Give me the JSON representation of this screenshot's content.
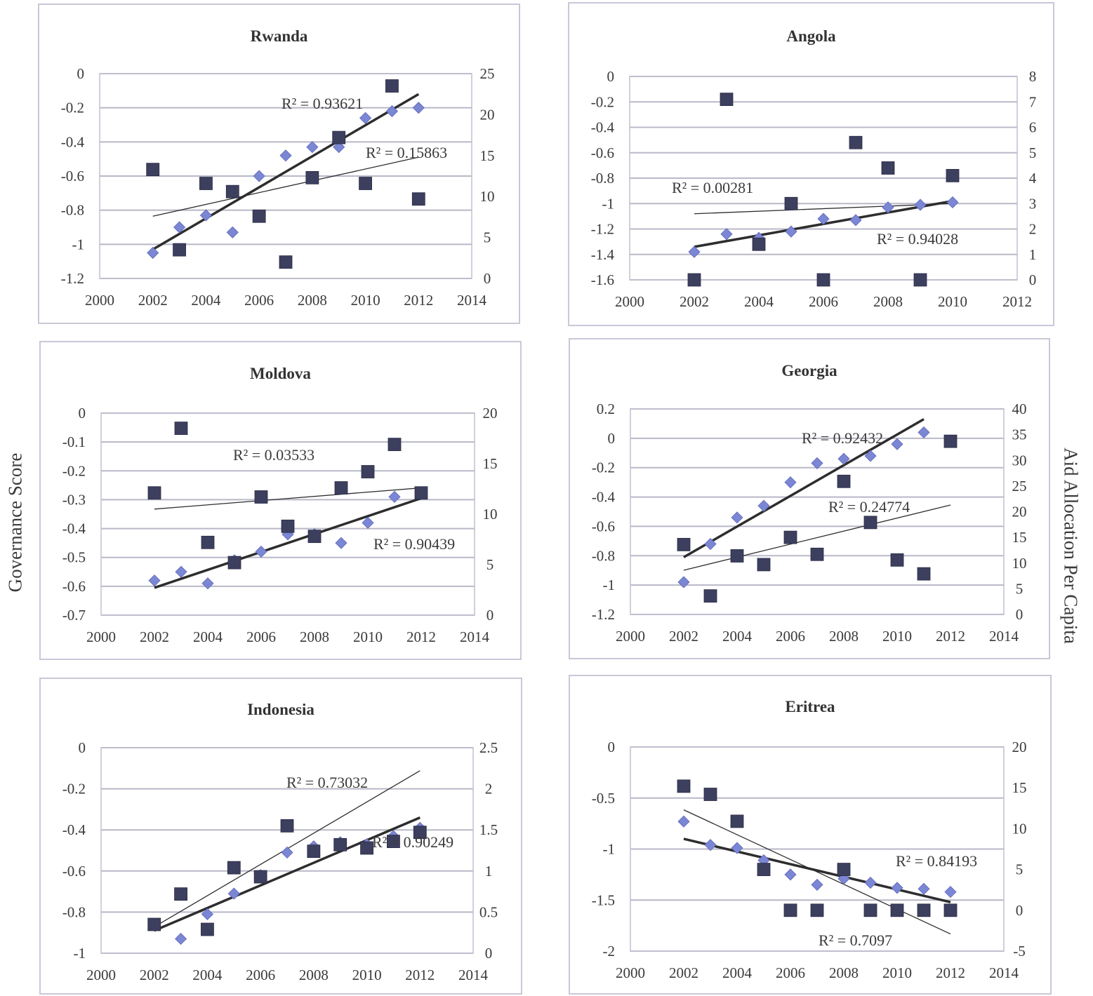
{
  "shared": {
    "left_axis_label": "Governance Score",
    "right_axis_label": "Aid Allocation Per Capita"
  },
  "chart_data": [
    {
      "type": "scatter",
      "title": "Rwanda",
      "x_ticks": [
        "2000",
        "2002",
        "2004",
        "2006",
        "2008",
        "2010",
        "2012",
        "2014"
      ],
      "xlim": [
        2000,
        2014
      ],
      "y_left": {
        "range": [
          -1.2,
          0
        ],
        "ticks": [
          "0",
          "-0.2",
          "-0.4",
          "-0.6",
          "-0.8",
          "-1",
          "-1.2"
        ]
      },
      "y_right": {
        "range": [
          0,
          25
        ],
        "ticks": [
          "25",
          "20",
          "15",
          "10",
          "5",
          "0"
        ]
      },
      "series": [
        {
          "axis": "left",
          "marker": "diamond",
          "x": [
            2002,
            2003,
            2004,
            2005,
            2006,
            2007,
            2008,
            2009,
            2010,
            2011,
            2012
          ],
          "y": [
            -1.05,
            -0.9,
            -0.83,
            -0.93,
            -0.6,
            -0.48,
            -0.43,
            -0.43,
            -0.26,
            -0.22,
            -0.2
          ]
        },
        {
          "axis": "right",
          "marker": "square",
          "x": [
            2002,
            2003,
            2004,
            2005,
            2006,
            2007,
            2008,
            2009,
            2010,
            2011,
            2012
          ],
          "y": [
            13.3,
            3.5,
            11.6,
            10.6,
            7.6,
            2.0,
            12.3,
            17.2,
            11.6,
            23.5,
            9.7
          ]
        }
      ],
      "trendlines": [
        {
          "axis": "left",
          "style": "thick",
          "x": [
            2002,
            2012
          ],
          "y": [
            -1.03,
            -0.12
          ]
        },
        {
          "axis": "right",
          "style": "thin",
          "x": [
            2002,
            2012
          ],
          "y": [
            7.6,
            14.8
          ]
        }
      ],
      "annotations": [
        "R² = 0.93621",
        "R² = 0.15863"
      ]
    },
    {
      "type": "scatter",
      "title": "Angola",
      "x_ticks": [
        "2000",
        "2002",
        "2004",
        "2006",
        "2008",
        "2010",
        "2012"
      ],
      "xlim": [
        2000,
        2012
      ],
      "y_left": {
        "range": [
          -1.6,
          0
        ],
        "ticks": [
          "0",
          "-0.2",
          "-0.4",
          "-0.6",
          "-0.8",
          "-1",
          "-1.2",
          "-1.4",
          "-1.6"
        ]
      },
      "y_right": {
        "range": [
          0,
          8
        ],
        "ticks": [
          "8",
          "7",
          "6",
          "5",
          "4",
          "3",
          "2",
          "1",
          "0"
        ]
      },
      "series": [
        {
          "axis": "left",
          "marker": "diamond",
          "x": [
            2002,
            2003,
            2004,
            2005,
            2006,
            2007,
            2008,
            2009,
            2010
          ],
          "y": [
            -1.38,
            -1.24,
            -1.27,
            -1.22,
            -1.12,
            -1.13,
            -1.03,
            -1.01,
            -0.99
          ]
        },
        {
          "axis": "right",
          "marker": "square",
          "x": [
            2002,
            2003,
            2004,
            2005,
            2006,
            2007,
            2008,
            2009,
            2010
          ],
          "y": [
            0,
            7.1,
            1.4,
            3.0,
            0,
            5.4,
            4.4,
            0,
            4.1
          ]
        }
      ],
      "trendlines": [
        {
          "axis": "left",
          "style": "thick",
          "x": [
            2002,
            2010
          ],
          "y": [
            -1.34,
            -0.98
          ]
        },
        {
          "axis": "right",
          "style": "thin",
          "x": [
            2002,
            2010
          ],
          "y": [
            2.6,
            3.0
          ]
        }
      ],
      "annotations": [
        "R² = 0.00281",
        "R² = 0.94028"
      ]
    },
    {
      "type": "scatter",
      "title": "Moldova",
      "x_ticks": [
        "2000",
        "2002",
        "2004",
        "2006",
        "2008",
        "2010",
        "2012",
        "2014"
      ],
      "xlim": [
        2000,
        2014
      ],
      "y_left": {
        "range": [
          -0.7,
          0
        ],
        "ticks": [
          "0",
          "-0.1",
          "-0.2",
          "-0.3",
          "-0.4",
          "-0.5",
          "-0.6",
          "-0.7"
        ]
      },
      "y_right": {
        "range": [
          0,
          20
        ],
        "ticks": [
          "20",
          "15",
          "10",
          "5",
          "0"
        ]
      },
      "series": [
        {
          "axis": "left",
          "marker": "diamond",
          "x": [
            2002,
            2003,
            2004,
            2005,
            2006,
            2007,
            2008,
            2009,
            2010,
            2011,
            2012
          ],
          "y": [
            -0.58,
            -0.55,
            -0.59,
            -0.51,
            -0.48,
            -0.42,
            -0.42,
            -0.45,
            -0.38,
            -0.29,
            -0.28
          ]
        },
        {
          "axis": "right",
          "marker": "square",
          "x": [
            2002,
            2003,
            2004,
            2005,
            2006,
            2007,
            2008,
            2009,
            2010,
            2011,
            2012
          ],
          "y": [
            12.1,
            18.5,
            7.2,
            5.2,
            11.7,
            8.8,
            7.8,
            12.6,
            14.2,
            16.9,
            12.1
          ]
        }
      ],
      "trendlines": [
        {
          "axis": "left",
          "style": "thick",
          "x": [
            2002,
            2012
          ],
          "y": [
            -0.605,
            -0.295
          ]
        },
        {
          "axis": "right",
          "style": "thin",
          "x": [
            2002,
            2012
          ],
          "y": [
            10.5,
            12.6
          ]
        }
      ],
      "annotations": [
        "R² = 0.03533",
        "R² = 0.90439"
      ]
    },
    {
      "type": "scatter",
      "title": "Georgia",
      "x_ticks": [
        "2000",
        "2002",
        "2004",
        "2006",
        "2008",
        "2010",
        "2012",
        "2014"
      ],
      "xlim": [
        2000,
        2014
      ],
      "y_left": {
        "range": [
          -1.2,
          0.2
        ],
        "ticks": [
          "0.2",
          "0",
          "-0.2",
          "-0.4",
          "-0.6",
          "-0.8",
          "-1",
          "-1.2"
        ]
      },
      "y_right": {
        "range": [
          0,
          40
        ],
        "ticks": [
          "40",
          "35",
          "30",
          "25",
          "20",
          "15",
          "10",
          "5",
          "0"
        ]
      },
      "series": [
        {
          "axis": "left",
          "marker": "diamond",
          "x": [
            2002,
            2003,
            2004,
            2005,
            2006,
            2007,
            2008,
            2009,
            2010,
            2011
          ],
          "y": [
            -0.98,
            -0.72,
            -0.54,
            -0.46,
            -0.3,
            -0.17,
            -0.14,
            -0.12,
            -0.04,
            0.04
          ]
        },
        {
          "axis": "right",
          "marker": "square",
          "x": [
            2002,
            2003,
            2004,
            2005,
            2006,
            2007,
            2008,
            2009,
            2010,
            2011,
            2012
          ],
          "y": [
            13.6,
            3.6,
            11.4,
            9.7,
            15.0,
            11.7,
            25.9,
            17.9,
            10.6,
            7.9,
            33.7
          ]
        }
      ],
      "trendlines": [
        {
          "axis": "left",
          "style": "thick",
          "x": [
            2002,
            2011
          ],
          "y": [
            -0.81,
            0.13
          ]
        },
        {
          "axis": "right",
          "style": "thin",
          "x": [
            2002,
            2012
          ],
          "y": [
            8.6,
            21.3
          ]
        }
      ],
      "annotations": [
        "R² = 0.92432",
        "R² = 0.24774"
      ]
    },
    {
      "type": "scatter",
      "title": "Indonesia",
      "x_ticks": [
        "2000",
        "2002",
        "2004",
        "2006",
        "2008",
        "2010",
        "2012",
        "2014"
      ],
      "xlim": [
        2000,
        2014
      ],
      "y_left": {
        "range": [
          -1,
          0
        ],
        "ticks": [
          "0",
          "-0.2",
          "-0.4",
          "-0.6",
          "-0.8",
          "-1"
        ]
      },
      "y_right": {
        "range": [
          0,
          2.5
        ],
        "ticks": [
          "2.5",
          "2",
          "1.5",
          "1",
          "0.5",
          "0"
        ]
      },
      "series": [
        {
          "axis": "left",
          "marker": "diamond",
          "x": [
            2002,
            2003,
            2004,
            2005,
            2006,
            2007,
            2008,
            2009,
            2010,
            2011,
            2012
          ],
          "y": [
            -0.86,
            -0.93,
            -0.81,
            -0.71,
            -0.62,
            -0.51,
            -0.48,
            -0.46,
            -0.47,
            -0.43,
            -0.39
          ]
        },
        {
          "axis": "right",
          "marker": "square",
          "x": [
            2002,
            2003,
            2004,
            2005,
            2006,
            2007,
            2008,
            2009,
            2010,
            2011,
            2012
          ],
          "y": [
            0.35,
            0.72,
            0.29,
            1.04,
            0.93,
            1.55,
            1.24,
            1.32,
            1.28,
            1.36,
            1.47
          ]
        }
      ],
      "trendlines": [
        {
          "axis": "left",
          "style": "thick",
          "x": [
            2002,
            2012
          ],
          "y": [
            -0.89,
            -0.34
          ]
        },
        {
          "axis": "right",
          "style": "thin",
          "x": [
            2002,
            2012
          ],
          "y": [
            0.32,
            2.22
          ]
        }
      ],
      "annotations": [
        "R² = 0.73032",
        "R² = 0.90249"
      ]
    },
    {
      "type": "scatter",
      "title": "Eritrea",
      "x_ticks": [
        "2000",
        "2002",
        "2004",
        "2006",
        "2008",
        "2010",
        "2012",
        "2014"
      ],
      "xlim": [
        2000,
        2014
      ],
      "y_left": {
        "range": [
          -2,
          0
        ],
        "ticks": [
          "0",
          "-0.5",
          "-1",
          "-1.5",
          "-2"
        ]
      },
      "y_right": {
        "range": [
          -5,
          20
        ],
        "ticks": [
          "20",
          "15",
          "10",
          "5",
          "0",
          "-5"
        ]
      },
      "series": [
        {
          "axis": "left",
          "marker": "diamond",
          "x": [
            2002,
            2003,
            2004,
            2005,
            2006,
            2007,
            2008,
            2009,
            2010,
            2011,
            2012
          ],
          "y": [
            -0.73,
            -0.96,
            -0.99,
            -1.11,
            -1.25,
            -1.35,
            -1.29,
            -1.33,
            -1.38,
            -1.39,
            -1.42
          ]
        },
        {
          "axis": "right",
          "marker": "square",
          "x": [
            2002,
            2003,
            2004,
            2005,
            2006,
            2007,
            2008,
            2009,
            2010,
            2011,
            2012
          ],
          "y": [
            15.2,
            14.2,
            10.9,
            5.0,
            0,
            0,
            5.0,
            0,
            0,
            0,
            0
          ]
        }
      ],
      "trendlines": [
        {
          "axis": "left",
          "style": "thick",
          "x": [
            2002,
            2012
          ],
          "y": [
            -0.9,
            -1.52
          ]
        },
        {
          "axis": "right",
          "style": "thin",
          "x": [
            2002,
            2012
          ],
          "y": [
            12.3,
            -2.9
          ]
        }
      ],
      "annotations": [
        "R² = 0.84193",
        "R² = 0.7097"
      ]
    }
  ]
}
